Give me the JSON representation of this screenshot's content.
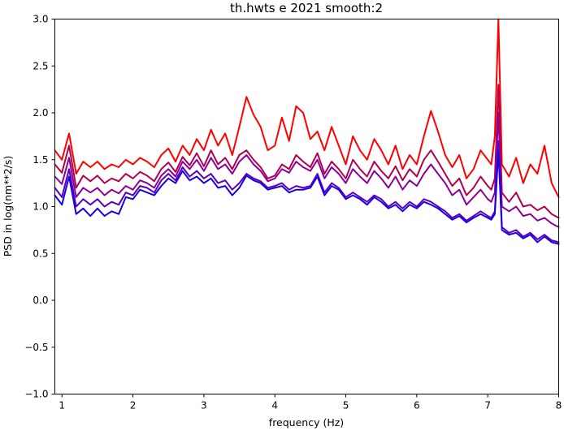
{
  "chart_data": {
    "type": "line",
    "title": "th.hwts e 2021 smooth:2",
    "xlabel": "frequency (Hz)",
    "ylabel": "PSD in log(nm**2/s)",
    "xlim": [
      0.9,
      8.0
    ],
    "ylim": [
      -1.0,
      3.0
    ],
    "xticks": [
      1,
      2,
      3,
      4,
      5,
      6,
      7,
      8
    ],
    "yticks": [
      -1.0,
      -0.5,
      0.0,
      0.5,
      1.0,
      1.5,
      2.0,
      2.5,
      3.0
    ],
    "xtick_labels": [
      "1",
      "2",
      "3",
      "4",
      "5",
      "6",
      "7",
      "8"
    ],
    "ytick_labels": [
      "−1.0",
      "−0.5",
      "0.0",
      "0.5",
      "1.0",
      "1.5",
      "2.0",
      "2.5",
      "3.0"
    ],
    "grid": false,
    "legend": "none",
    "x": [
      0.9,
      1.0,
      1.1,
      1.2,
      1.3,
      1.4,
      1.5,
      1.6,
      1.7,
      1.8,
      1.9,
      2.0,
      2.1,
      2.2,
      2.3,
      2.4,
      2.5,
      2.6,
      2.7,
      2.8,
      2.9,
      3.0,
      3.1,
      3.2,
      3.3,
      3.4,
      3.5,
      3.6,
      3.7,
      3.8,
      3.9,
      4.0,
      4.1,
      4.2,
      4.3,
      4.4,
      4.5,
      4.6,
      4.7,
      4.8,
      4.9,
      5.0,
      5.1,
      5.2,
      5.3,
      5.4,
      5.5,
      5.6,
      5.7,
      5.8,
      5.9,
      6.0,
      6.1,
      6.2,
      6.3,
      6.4,
      6.5,
      6.6,
      6.7,
      6.8,
      6.9,
      7.0,
      7.05,
      7.1,
      7.15,
      7.2,
      7.3,
      7.4,
      7.5,
      7.6,
      7.7,
      7.8,
      7.9,
      8.0
    ],
    "series": [
      {
        "color": "#ff0000",
        "values": [
          1.6,
          1.5,
          1.78,
          1.35,
          1.48,
          1.42,
          1.48,
          1.4,
          1.45,
          1.42,
          1.5,
          1.45,
          1.52,
          1.48,
          1.42,
          1.55,
          1.62,
          1.48,
          1.65,
          1.55,
          1.72,
          1.6,
          1.82,
          1.65,
          1.78,
          1.55,
          1.85,
          2.17,
          1.98,
          1.85,
          1.6,
          1.65,
          1.95,
          1.7,
          2.07,
          2.0,
          1.72,
          1.8,
          1.6,
          1.85,
          1.65,
          1.45,
          1.75,
          1.6,
          1.5,
          1.72,
          1.6,
          1.45,
          1.65,
          1.4,
          1.55,
          1.45,
          1.75,
          2.02,
          1.8,
          1.55,
          1.42,
          1.55,
          1.3,
          1.4,
          1.6,
          1.5,
          1.45,
          1.75,
          3.0,
          1.45,
          1.32,
          1.52,
          1.25,
          1.45,
          1.35,
          1.65,
          1.25,
          1.1
        ]
      },
      {
        "color": "#b3004d",
        "values": [
          1.45,
          1.36,
          1.65,
          1.2,
          1.33,
          1.27,
          1.33,
          1.25,
          1.3,
          1.27,
          1.35,
          1.3,
          1.37,
          1.33,
          1.27,
          1.4,
          1.47,
          1.37,
          1.53,
          1.44,
          1.57,
          1.43,
          1.6,
          1.45,
          1.52,
          1.4,
          1.55,
          1.6,
          1.5,
          1.42,
          1.3,
          1.33,
          1.45,
          1.4,
          1.55,
          1.48,
          1.42,
          1.57,
          1.35,
          1.48,
          1.4,
          1.3,
          1.5,
          1.4,
          1.32,
          1.48,
          1.38,
          1.3,
          1.43,
          1.28,
          1.4,
          1.32,
          1.5,
          1.6,
          1.48,
          1.35,
          1.22,
          1.3,
          1.12,
          1.2,
          1.32,
          1.22,
          1.18,
          1.3,
          2.3,
          1.15,
          1.05,
          1.15,
          1.0,
          1.02,
          0.96,
          1.0,
          0.92,
          0.88
        ]
      },
      {
        "color": "#8c0099",
        "values": [
          1.32,
          1.24,
          1.52,
          1.1,
          1.2,
          1.15,
          1.2,
          1.12,
          1.18,
          1.14,
          1.22,
          1.18,
          1.28,
          1.25,
          1.2,
          1.33,
          1.4,
          1.32,
          1.48,
          1.4,
          1.5,
          1.38,
          1.52,
          1.4,
          1.45,
          1.35,
          1.48,
          1.55,
          1.45,
          1.38,
          1.27,
          1.3,
          1.4,
          1.36,
          1.48,
          1.42,
          1.38,
          1.5,
          1.3,
          1.42,
          1.35,
          1.25,
          1.4,
          1.32,
          1.25,
          1.38,
          1.3,
          1.2,
          1.32,
          1.18,
          1.28,
          1.22,
          1.35,
          1.45,
          1.35,
          1.25,
          1.12,
          1.18,
          1.02,
          1.1,
          1.18,
          1.08,
          1.05,
          1.15,
          2.0,
          1.0,
          0.95,
          1.0,
          0.9,
          0.92,
          0.85,
          0.88,
          0.82,
          0.78
        ]
      },
      {
        "color": "#5c00b8",
        "values": [
          1.2,
          1.1,
          1.4,
          1.0,
          1.08,
          1.02,
          1.08,
          1.0,
          1.05,
          1.02,
          1.15,
          1.12,
          1.22,
          1.2,
          1.15,
          1.28,
          1.35,
          1.28,
          1.42,
          1.32,
          1.38,
          1.3,
          1.35,
          1.25,
          1.28,
          1.18,
          1.25,
          1.35,
          1.3,
          1.27,
          1.2,
          1.22,
          1.25,
          1.18,
          1.22,
          1.2,
          1.22,
          1.35,
          1.15,
          1.25,
          1.2,
          1.1,
          1.15,
          1.1,
          1.05,
          1.12,
          1.08,
          1.0,
          1.05,
          0.98,
          1.05,
          1.0,
          1.08,
          1.05,
          1.0,
          0.95,
          0.88,
          0.92,
          0.85,
          0.9,
          0.95,
          0.9,
          0.88,
          0.95,
          1.7,
          0.78,
          0.72,
          0.75,
          0.68,
          0.72,
          0.65,
          0.7,
          0.64,
          0.62
        ]
      },
      {
        "color": "#1a00e6",
        "values": [
          1.12,
          1.02,
          1.32,
          0.92,
          0.98,
          0.9,
          0.98,
          0.9,
          0.95,
          0.92,
          1.1,
          1.08,
          1.18,
          1.15,
          1.12,
          1.22,
          1.3,
          1.25,
          1.38,
          1.28,
          1.32,
          1.25,
          1.3,
          1.2,
          1.22,
          1.12,
          1.2,
          1.33,
          1.28,
          1.25,
          1.18,
          1.2,
          1.22,
          1.15,
          1.18,
          1.18,
          1.2,
          1.32,
          1.12,
          1.22,
          1.18,
          1.08,
          1.12,
          1.08,
          1.02,
          1.1,
          1.05,
          0.98,
          1.02,
          0.95,
          1.02,
          0.98,
          1.05,
          1.02,
          0.98,
          0.92,
          0.86,
          0.9,
          0.83,
          0.88,
          0.92,
          0.88,
          0.86,
          0.92,
          1.6,
          0.75,
          0.7,
          0.72,
          0.66,
          0.7,
          0.62,
          0.68,
          0.62,
          0.6
        ]
      }
    ]
  }
}
